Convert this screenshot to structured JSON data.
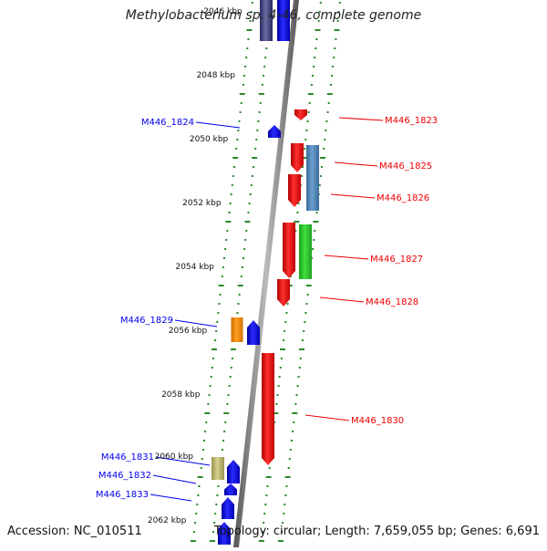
{
  "title": "Methylobacterium sp. 4-46, complete genome",
  "footer": {
    "accession": "Accession: NC_010511",
    "topology": "Topology: circular; Length: 7,659,055 bp; Genes: 6,691"
  },
  "colors": {
    "forward": "#0000ee",
    "reverse": "#ee0000",
    "ticks": "#2a8a2a",
    "backbone": "#8a8a8a"
  },
  "scale_labels": [
    "2046 kbp",
    "2048 kbp",
    "2050 kbp",
    "2052 kbp",
    "2054 kbp",
    "2056 kbp",
    "2058 kbp",
    "2060 kbp",
    "2062 kbp"
  ],
  "genes_left": [
    "M446_1824",
    "M446_1829",
    "M446_1831",
    "M446_1832",
    "M446_1833"
  ],
  "genes_right": [
    "M446_1823",
    "M446_1825",
    "M446_1826",
    "M446_1827",
    "M446_1828",
    "M446_1830"
  ]
}
